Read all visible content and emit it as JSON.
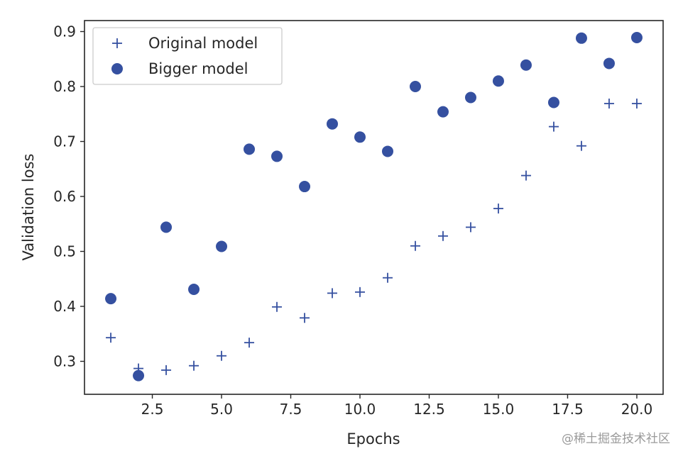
{
  "chart_data": {
    "type": "scatter",
    "xlabel": "Epochs",
    "ylabel": "Validation loss",
    "xlim": [
      0.05,
      20.95
    ],
    "ylim": [
      0.24,
      0.92
    ],
    "xticks": [
      2.5,
      5.0,
      7.5,
      10.0,
      12.5,
      15.0,
      17.5,
      20.0
    ],
    "xtick_labels": [
      "2.5",
      "5.0",
      "7.5",
      "10.0",
      "12.5",
      "15.0",
      "17.5",
      "20.0"
    ],
    "yticks": [
      0.3,
      0.4,
      0.5,
      0.6,
      0.7,
      0.8,
      0.9
    ],
    "ytick_labels": [
      "0.3",
      "0.4",
      "0.5",
      "0.6",
      "0.7",
      "0.8",
      "0.9"
    ],
    "grid": false,
    "legend_position": "top-left",
    "x": [
      1,
      2,
      3,
      4,
      5,
      6,
      7,
      8,
      9,
      10,
      11,
      12,
      13,
      14,
      15,
      16,
      17,
      18,
      19,
      20
    ],
    "series": [
      {
        "name": "Original model",
        "marker": "+",
        "color": "#3550a0",
        "values": [
          0.343,
          0.287,
          0.284,
          0.292,
          0.31,
          0.334,
          0.399,
          0.379,
          0.424,
          0.426,
          0.452,
          0.51,
          0.528,
          0.544,
          0.578,
          0.638,
          0.727,
          0.692,
          0.769,
          0.769
        ]
      },
      {
        "name": "Bigger model",
        "marker": "o",
        "color": "#3550a0",
        "values": [
          0.414,
          0.274,
          0.544,
          0.431,
          0.509,
          0.686,
          0.673,
          0.618,
          0.732,
          0.708,
          0.682,
          0.8,
          0.754,
          0.78,
          0.81,
          0.839,
          0.771,
          0.888,
          0.842,
          0.889
        ]
      }
    ]
  },
  "watermark": "@稀土掘金技术社区"
}
